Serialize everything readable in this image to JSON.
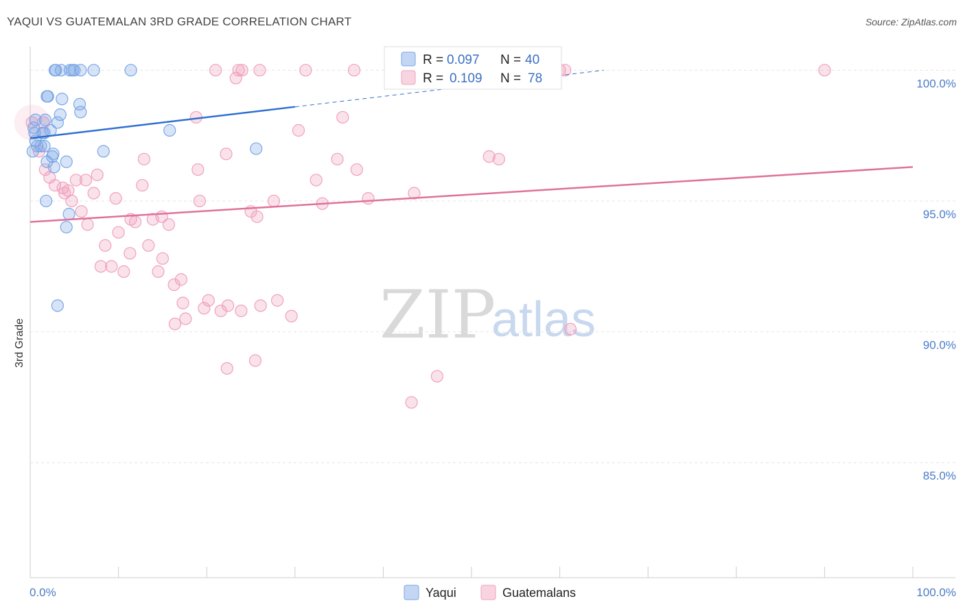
{
  "chart_data": {
    "type": "scatter",
    "title": "YAQUI VS GUATEMALAN 3RD GRADE CORRELATION CHART",
    "source": "Source: ZipAtlas.com",
    "xlabel": "",
    "ylabel": "3rd Grade",
    "xlim": [
      0,
      100
    ],
    "ylim": [
      80.6,
      100.9
    ],
    "x_tick_labels": [
      "0.0%",
      "100.0%"
    ],
    "y_ticks": [
      {
        "value": 85.0,
        "label": "85.0%"
      },
      {
        "value": 90.0,
        "label": "90.0%"
      },
      {
        "value": 95.0,
        "label": "95.0%"
      },
      {
        "value": 100.0,
        "label": "100.0%"
      }
    ],
    "watermark": {
      "zip": "ZIP",
      "atlas": "atlas"
    },
    "legend": [
      {
        "name": "Yaqui",
        "r_label": "R =",
        "r_value": "0.097",
        "n_label": "N =",
        "n_value": "40"
      },
      {
        "name": "Guatemalans",
        "r_label": "R =",
        "r_value": "0.109",
        "n_label": "N =",
        "n_value": "78"
      }
    ],
    "series": [
      {
        "name": "Yaqui",
        "color": "#7aa6e6",
        "fill": "rgba(122,166,230,0.30)",
        "trend_color": "#2f6fcf",
        "trend": {
          "x0": 0,
          "y0": 97.4,
          "x1": 30,
          "y1": 98.6,
          "dash_to_x": 65,
          "dash_to_y": 100.0
        },
        "points": [
          [
            2.8,
            100.0
          ],
          [
            2.9,
            100.0
          ],
          [
            3.5,
            100.0
          ],
          [
            4.5,
            100.0
          ],
          [
            4.8,
            100.0
          ],
          [
            5.7,
            100.0
          ],
          [
            7.2,
            100.0
          ],
          [
            11.4,
            100.0
          ],
          [
            2.0,
            99.0
          ],
          [
            3.6,
            98.9
          ],
          [
            5.6,
            98.7
          ],
          [
            5.7,
            98.4
          ],
          [
            3.4,
            98.3
          ],
          [
            0.6,
            98.1
          ],
          [
            1.7,
            98.1
          ],
          [
            3.1,
            98.0
          ],
          [
            0.4,
            97.8
          ],
          [
            1.4,
            97.6
          ],
          [
            1.6,
            97.6
          ],
          [
            2.3,
            97.7
          ],
          [
            15.8,
            97.7
          ],
          [
            0.6,
            97.3
          ],
          [
            0.8,
            97.1
          ],
          [
            1.2,
            97.1
          ],
          [
            1.6,
            97.1
          ],
          [
            25.6,
            97.0
          ],
          [
            0.3,
            96.9
          ],
          [
            8.3,
            96.9
          ],
          [
            2.6,
            96.8
          ],
          [
            1.9,
            96.5
          ],
          [
            4.1,
            96.5
          ],
          [
            2.5,
            96.7
          ],
          [
            2.7,
            96.3
          ],
          [
            1.8,
            95.0
          ],
          [
            4.4,
            94.5
          ],
          [
            4.1,
            94.0
          ],
          [
            3.1,
            91.0
          ],
          [
            1.9,
            99.0
          ],
          [
            5.0,
            100.0
          ],
          [
            0.5,
            97.6
          ]
        ]
      },
      {
        "name": "Guatemalans",
        "color": "#f0a0bc",
        "fill": "rgba(240,160,188,0.30)",
        "trend_color": "#e0709a",
        "trend": {
          "x0": 0,
          "y0": 94.2,
          "x1": 100,
          "y1": 96.3
        },
        "points": [
          [
            21.0,
            100.0
          ],
          [
            23.6,
            100.0
          ],
          [
            24.0,
            100.0
          ],
          [
            26.0,
            100.0
          ],
          [
            31.2,
            100.0
          ],
          [
            36.7,
            100.0
          ],
          [
            60.0,
            100.0
          ],
          [
            60.6,
            100.0
          ],
          [
            90.0,
            100.0
          ],
          [
            23.3,
            99.7
          ],
          [
            18.8,
            98.2
          ],
          [
            35.4,
            98.2
          ],
          [
            0.2,
            98.0
          ],
          [
            1.5,
            98.0
          ],
          [
            30.4,
            97.7
          ],
          [
            1.0,
            96.9
          ],
          [
            22.2,
            96.8
          ],
          [
            12.9,
            96.6
          ],
          [
            34.8,
            96.6
          ],
          [
            53.1,
            96.6
          ],
          [
            37.0,
            96.2
          ],
          [
            19.0,
            96.2
          ],
          [
            1.7,
            96.2
          ],
          [
            7.6,
            96.0
          ],
          [
            2.2,
            95.9
          ],
          [
            6.3,
            95.8
          ],
          [
            5.2,
            95.8
          ],
          [
            32.4,
            95.8
          ],
          [
            12.7,
            95.6
          ],
          [
            2.8,
            95.6
          ],
          [
            3.7,
            95.5
          ],
          [
            4.3,
            95.4
          ],
          [
            3.9,
            95.3
          ],
          [
            7.2,
            95.3
          ],
          [
            9.7,
            95.1
          ],
          [
            19.2,
            95.0
          ],
          [
            27.6,
            95.0
          ],
          [
            33.1,
            94.9
          ],
          [
            38.3,
            95.1
          ],
          [
            43.5,
            95.3
          ],
          [
            4.7,
            95.0
          ],
          [
            5.8,
            94.6
          ],
          [
            25.0,
            94.6
          ],
          [
            25.7,
            94.4
          ],
          [
            14.9,
            94.4
          ],
          [
            11.4,
            94.3
          ],
          [
            11.9,
            94.2
          ],
          [
            13.9,
            94.3
          ],
          [
            6.5,
            94.1
          ],
          [
            15.7,
            94.1
          ],
          [
            10.0,
            93.8
          ],
          [
            8.5,
            93.3
          ],
          [
            13.4,
            93.3
          ],
          [
            11.3,
            93.0
          ],
          [
            15.0,
            92.8
          ],
          [
            8.0,
            92.5
          ],
          [
            9.2,
            92.5
          ],
          [
            10.6,
            92.3
          ],
          [
            14.5,
            92.3
          ],
          [
            17.1,
            92.0
          ],
          [
            16.3,
            91.8
          ],
          [
            26.1,
            91.0
          ],
          [
            28.0,
            91.2
          ],
          [
            20.2,
            91.2
          ],
          [
            17.3,
            91.1
          ],
          [
            22.4,
            91.0
          ],
          [
            19.7,
            90.9
          ],
          [
            21.6,
            90.8
          ],
          [
            23.9,
            90.8
          ],
          [
            17.6,
            90.5
          ],
          [
            29.6,
            90.6
          ],
          [
            16.4,
            90.3
          ],
          [
            61.2,
            90.1
          ],
          [
            25.5,
            88.9
          ],
          [
            22.3,
            88.6
          ],
          [
            46.1,
            88.3
          ],
          [
            43.2,
            87.3
          ],
          [
            52.0,
            96.7
          ]
        ]
      }
    ]
  }
}
